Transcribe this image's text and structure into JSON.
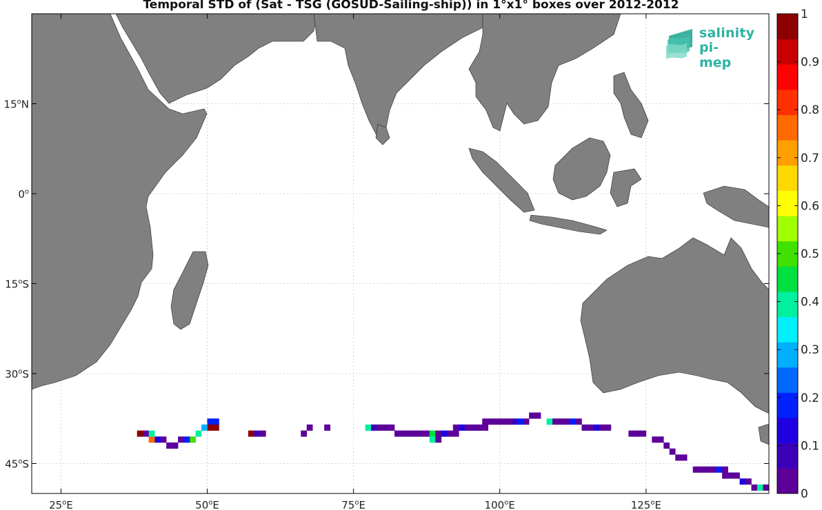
{
  "chart_data": {
    "type": "heatmap",
    "title": "Temporal STD of (Sat - TSG (GOSUD-Sailing-ship)) in 1°x1° boxes over 2012-2012",
    "map": {
      "lon_range": [
        20,
        146
      ],
      "lat_range": [
        -50,
        30
      ],
      "lon_ticks": [
        {
          "value": 25,
          "label": "25",
          "unit": "E"
        },
        {
          "value": 50,
          "label": "50",
          "unit": "E"
        },
        {
          "value": 75,
          "label": "75",
          "unit": "E"
        },
        {
          "value": 100,
          "label": "100",
          "unit": "E"
        },
        {
          "value": 125,
          "label": "125",
          "unit": "E"
        }
      ],
      "lat_ticks": [
        {
          "value": 15,
          "label": "15",
          "unit": "N"
        },
        {
          "value": 0,
          "label": "0",
          "unit": ""
        },
        {
          "value": -15,
          "label": "15",
          "unit": "S"
        },
        {
          "value": -30,
          "label": "30",
          "unit": "S"
        },
        {
          "value": -45,
          "label": "45",
          "unit": "S"
        }
      ],
      "grid": true,
      "land_color": "#808080",
      "ocean_color": "#ffffff"
    },
    "colorbar": {
      "min": 0,
      "max": 1,
      "ticks": [
        "0",
        "0.1",
        "0.2",
        "0.3",
        "0.4",
        "0.5",
        "0.6",
        "0.7",
        "0.8",
        "0.9",
        "1"
      ],
      "colors": [
        "#5c0099",
        "#3c00b8",
        "#1f00e0",
        "#0020ff",
        "#0068ff",
        "#00b0ff",
        "#00f0ff",
        "#00f0a0",
        "#00e040",
        "#40e000",
        "#a0ff00",
        "#ffff00",
        "#ffd800",
        "#ffa000",
        "#ff6a00",
        "#ff3000",
        "#ff0000",
        "#c80000",
        "#8c0000"
      ]
    },
    "cells": [
      {
        "lon": 50,
        "lat": -38,
        "v": 0.2
      },
      {
        "lon": 51,
        "lat": -38,
        "v": 0.2
      },
      {
        "lon": 50,
        "lat": -39,
        "v": 0.95
      },
      {
        "lon": 51,
        "lat": -39,
        "v": 0.95
      },
      {
        "lon": 49,
        "lat": -39,
        "v": 0.3
      },
      {
        "lon": 48,
        "lat": -40,
        "v": 0.4
      },
      {
        "lon": 47,
        "lat": -41,
        "v": 0.5
      },
      {
        "lon": 46,
        "lat": -41,
        "v": 0.2
      },
      {
        "lon": 45,
        "lat": -41,
        "v": 0.05
      },
      {
        "lon": 44,
        "lat": -42,
        "v": 0.05
      },
      {
        "lon": 43,
        "lat": -42,
        "v": 0.05
      },
      {
        "lon": 42,
        "lat": -41,
        "v": 0.05
      },
      {
        "lon": 41,
        "lat": -41,
        "v": 0.15
      },
      {
        "lon": 40,
        "lat": -41,
        "v": 0.75
      },
      {
        "lon": 39,
        "lat": -40,
        "v": 0.05
      },
      {
        "lon": 38,
        "lat": -40,
        "v": 0.95
      },
      {
        "lon": 40,
        "lat": -40,
        "v": 0.4
      },
      {
        "lon": 57,
        "lat": -40,
        "v": 0.95
      },
      {
        "lon": 58,
        "lat": -40,
        "v": 0.1
      },
      {
        "lon": 59,
        "lat": -40,
        "v": 0.05
      },
      {
        "lon": 66,
        "lat": -40,
        "v": 0.05
      },
      {
        "lon": 67,
        "lat": -39,
        "v": 0.05
      },
      {
        "lon": 70,
        "lat": -39,
        "v": 0.05
      },
      {
        "lon": 77,
        "lat": -39,
        "v": 0.4
      },
      {
        "lon": 78,
        "lat": -39,
        "v": 0.1
      },
      {
        "lon": 79,
        "lat": -39,
        "v": 0.05
      },
      {
        "lon": 80,
        "lat": -39,
        "v": 0.05
      },
      {
        "lon": 81,
        "lat": -39,
        "v": 0.05
      },
      {
        "lon": 82,
        "lat": -40,
        "v": 0.05
      },
      {
        "lon": 83,
        "lat": -40,
        "v": 0.05
      },
      {
        "lon": 84,
        "lat": -40,
        "v": 0.05
      },
      {
        "lon": 85,
        "lat": -40,
        "v": 0.05
      },
      {
        "lon": 86,
        "lat": -40,
        "v": 0.05
      },
      {
        "lon": 87,
        "lat": -40,
        "v": 0.05
      },
      {
        "lon": 88,
        "lat": -40,
        "v": 0.45
      },
      {
        "lon": 88,
        "lat": -41,
        "v": 0.4
      },
      {
        "lon": 89,
        "lat": -41,
        "v": 0.05
      },
      {
        "lon": 89,
        "lat": -40,
        "v": 0.05
      },
      {
        "lon": 90,
        "lat": -40,
        "v": 0.15
      },
      {
        "lon": 91,
        "lat": -40,
        "v": 0.05
      },
      {
        "lon": 92,
        "lat": -40,
        "v": 0.05
      },
      {
        "lon": 92,
        "lat": -39,
        "v": 0.05
      },
      {
        "lon": 93,
        "lat": -39,
        "v": 0.15
      },
      {
        "lon": 94,
        "lat": -39,
        "v": 0.05
      },
      {
        "lon": 95,
        "lat": -39,
        "v": 0.05
      },
      {
        "lon": 96,
        "lat": -39,
        "v": 0.05
      },
      {
        "lon": 97,
        "lat": -39,
        "v": 0.05
      },
      {
        "lon": 97,
        "lat": -38,
        "v": 0.05
      },
      {
        "lon": 98,
        "lat": -38,
        "v": 0.05
      },
      {
        "lon": 99,
        "lat": -38,
        "v": 0.05
      },
      {
        "lon": 100,
        "lat": -38,
        "v": 0.05
      },
      {
        "lon": 101,
        "lat": -38,
        "v": 0.05
      },
      {
        "lon": 102,
        "lat": -38,
        "v": 0.1
      },
      {
        "lon": 103,
        "lat": -38,
        "v": 0.2
      },
      {
        "lon": 104,
        "lat": -38,
        "v": 0.05
      },
      {
        "lon": 105,
        "lat": -37,
        "v": 0.05
      },
      {
        "lon": 106,
        "lat": -37,
        "v": 0.05
      },
      {
        "lon": 108,
        "lat": -38,
        "v": 0.4
      },
      {
        "lon": 109,
        "lat": -38,
        "v": 0.05
      },
      {
        "lon": 110,
        "lat": -38,
        "v": 0.05
      },
      {
        "lon": 111,
        "lat": -38,
        "v": 0.05
      },
      {
        "lon": 112,
        "lat": -38,
        "v": 0.2
      },
      {
        "lon": 113,
        "lat": -38,
        "v": 0.05
      },
      {
        "lon": 114,
        "lat": -39,
        "v": 0.05
      },
      {
        "lon": 115,
        "lat": -39,
        "v": 0.05
      },
      {
        "lon": 116,
        "lat": -39,
        "v": 0.15
      },
      {
        "lon": 117,
        "lat": -39,
        "v": 0.05
      },
      {
        "lon": 118,
        "lat": -39,
        "v": 0.05
      },
      {
        "lon": 122,
        "lat": -40,
        "v": 0.05
      },
      {
        "lon": 123,
        "lat": -40,
        "v": 0.05
      },
      {
        "lon": 124,
        "lat": -40,
        "v": 0.05
      },
      {
        "lon": 126,
        "lat": -41,
        "v": 0.05
      },
      {
        "lon": 127,
        "lat": -41,
        "v": 0.05
      },
      {
        "lon": 128,
        "lat": -42,
        "v": 0.05
      },
      {
        "lon": 129,
        "lat": -43,
        "v": 0.05
      },
      {
        "lon": 130,
        "lat": -44,
        "v": 0.05
      },
      {
        "lon": 131,
        "lat": -44,
        "v": 0.05
      },
      {
        "lon": 133,
        "lat": -46,
        "v": 0.05
      },
      {
        "lon": 134,
        "lat": -46,
        "v": 0.05
      },
      {
        "lon": 135,
        "lat": -46,
        "v": 0.05
      },
      {
        "lon": 136,
        "lat": -46,
        "v": 0.05
      },
      {
        "lon": 137,
        "lat": -46,
        "v": 0.2
      },
      {
        "lon": 138,
        "lat": -46,
        "v": 0.05
      },
      {
        "lon": 138,
        "lat": -47,
        "v": 0.05
      },
      {
        "lon": 139,
        "lat": -47,
        "v": 0.05
      },
      {
        "lon": 140,
        "lat": -47,
        "v": 0.05
      },
      {
        "lon": 141,
        "lat": -48,
        "v": 0.15
      },
      {
        "lon": 142,
        "lat": -48,
        "v": 0.05
      },
      {
        "lon": 143,
        "lat": -49,
        "v": 0.05
      },
      {
        "lon": 144,
        "lat": -49,
        "v": 0.4
      },
      {
        "lon": 145,
        "lat": -49,
        "v": 0.05
      }
    ]
  },
  "logo": {
    "line1": "salinity",
    "line2": "pi-mep"
  }
}
